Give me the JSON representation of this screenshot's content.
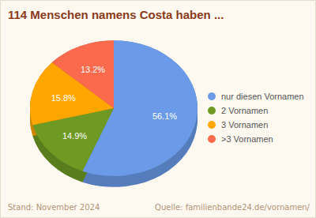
{
  "chart_data": {
    "type": "pie",
    "title": "114 Menschen namens Costa haben ...",
    "categories": [
      "nur diesen Vornamen",
      "2 Vornamen",
      "3 Vornamen",
      ">3 Vornamen"
    ],
    "values": [
      56.1,
      14.9,
      15.8,
      13.2
    ],
    "value_labels": [
      "56.1%",
      "14.9%",
      "15.8%",
      "13.2%"
    ],
    "colors": [
      "#6b9be8",
      "#6e9a23",
      "#ffa600",
      "#fb6a4c"
    ],
    "data_labels": true,
    "legend": "right",
    "annotations": [
      "Stand: November 2024",
      "Quelle: familienbande24.de/vornamen/"
    ]
  }
}
